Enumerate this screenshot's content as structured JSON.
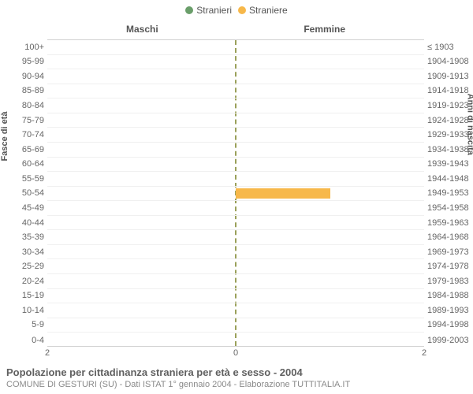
{
  "legend": {
    "male": {
      "label": "Stranieri",
      "color": "#6a9e6a"
    },
    "female": {
      "label": "Straniere",
      "color": "#f7b84a"
    }
  },
  "chart": {
    "type": "population-pyramid",
    "header_left": "Maschi",
    "header_right": "Femmine",
    "yaxis_left_title": "Fasce di età",
    "yaxis_right_title": "Anni di nascita",
    "xmax": 2,
    "xticks": [
      2,
      0,
      2
    ],
    "center_line_color": "#9aa05a",
    "grid_color": "#f0f0f0",
    "background": "#ffffff",
    "bar_colors": {
      "male": "#6a9e6a",
      "female": "#f7b84a"
    },
    "rows": [
      {
        "age": "100+",
        "year": "≤ 1903",
        "m": 0,
        "f": 0
      },
      {
        "age": "95-99",
        "year": "1904-1908",
        "m": 0,
        "f": 0
      },
      {
        "age": "90-94",
        "year": "1909-1913",
        "m": 0,
        "f": 0
      },
      {
        "age": "85-89",
        "year": "1914-1918",
        "m": 0,
        "f": 0
      },
      {
        "age": "80-84",
        "year": "1919-1923",
        "m": 0,
        "f": 0
      },
      {
        "age": "75-79",
        "year": "1924-1928",
        "m": 0,
        "f": 0
      },
      {
        "age": "70-74",
        "year": "1929-1933",
        "m": 0,
        "f": 0
      },
      {
        "age": "65-69",
        "year": "1934-1938",
        "m": 0,
        "f": 0
      },
      {
        "age": "60-64",
        "year": "1939-1943",
        "m": 0,
        "f": 0
      },
      {
        "age": "55-59",
        "year": "1944-1948",
        "m": 0,
        "f": 0
      },
      {
        "age": "50-54",
        "year": "1949-1953",
        "m": 0,
        "f": 1
      },
      {
        "age": "45-49",
        "year": "1954-1958",
        "m": 0,
        "f": 0
      },
      {
        "age": "40-44",
        "year": "1959-1963",
        "m": 0,
        "f": 0
      },
      {
        "age": "35-39",
        "year": "1964-1968",
        "m": 0,
        "f": 0
      },
      {
        "age": "30-34",
        "year": "1969-1973",
        "m": 0,
        "f": 0
      },
      {
        "age": "25-29",
        "year": "1974-1978",
        "m": 0,
        "f": 0
      },
      {
        "age": "20-24",
        "year": "1979-1983",
        "m": 0,
        "f": 0
      },
      {
        "age": "15-19",
        "year": "1984-1988",
        "m": 0,
        "f": 0
      },
      {
        "age": "10-14",
        "year": "1989-1993",
        "m": 0,
        "f": 0
      },
      {
        "age": "5-9",
        "year": "1994-1998",
        "m": 0,
        "f": 0
      },
      {
        "age": "0-4",
        "year": "1999-2003",
        "m": 0,
        "f": 0
      }
    ]
  },
  "footer": {
    "title": "Popolazione per cittadinanza straniera per età e sesso - 2004",
    "subtitle": "COMUNE DI GESTURI (SU) - Dati ISTAT 1° gennaio 2004 - Elaborazione TUTTITALIA.IT"
  }
}
